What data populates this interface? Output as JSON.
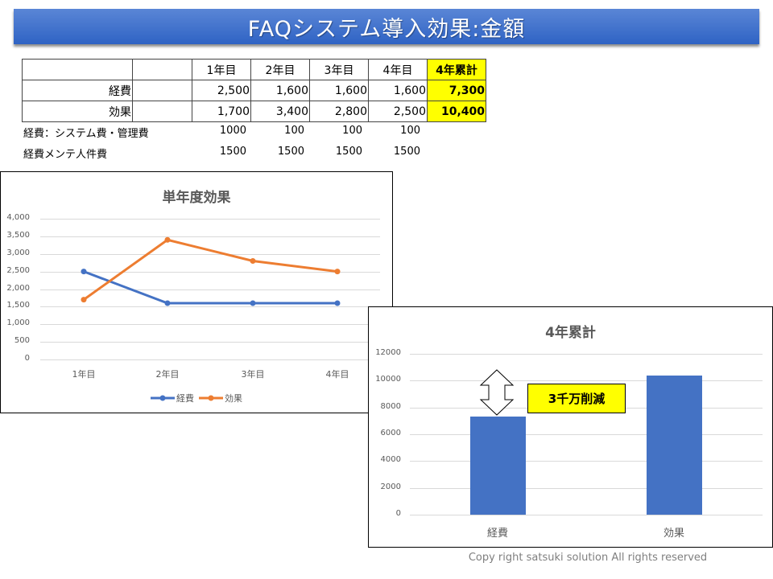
{
  "title": "FAQシステム導入効果:金額",
  "table": {
    "headers": [
      "",
      "",
      "1年目",
      "2年目",
      "3年目",
      "4年目",
      "4年累計"
    ],
    "rows": [
      {
        "label": "経費",
        "values": [
          "2,500",
          "1,600",
          "1,600",
          "1,600"
        ],
        "total": "7,300"
      },
      {
        "label": "効果",
        "values": [
          "1,700",
          "3,400",
          "2,800",
          "2,500"
        ],
        "total": "10,400"
      }
    ],
    "notes": [
      {
        "label": "経費：システム費・管理費",
        "values": [
          "1000",
          "100",
          "100",
          "100"
        ]
      },
      {
        "label": "経費メンテ人件費",
        "values": [
          "1500",
          "1500",
          "1500",
          "1500"
        ]
      }
    ]
  },
  "colors": {
    "series_cost": "#4472c4",
    "series_effect": "#ed7d31",
    "highlight": "#ffff00",
    "banner": "#3d6fcb"
  },
  "callout": "3千万削減",
  "copyright": "Copy right satsuki solution All rights reserved",
  "chart_data": [
    {
      "type": "line",
      "title": "単年度効果",
      "categories": [
        "1年目",
        "2年目",
        "3年目",
        "4年目"
      ],
      "series": [
        {
          "name": "経費",
          "values": [
            2500,
            1600,
            1600,
            1600
          ],
          "color": "#4472c4"
        },
        {
          "name": "効果",
          "values": [
            1700,
            3400,
            2800,
            2500
          ],
          "color": "#ed7d31"
        }
      ],
      "yticks": [
        "4,000",
        "3,500",
        "3,000",
        "2,500",
        "2,000",
        "1,500",
        "1,000",
        "500",
        "0"
      ],
      "ylim": [
        0,
        4000
      ],
      "xlabel": "",
      "ylabel": "",
      "grid": true,
      "legend_position": "bottom"
    },
    {
      "type": "bar",
      "title": "4年累計",
      "categories": [
        "経費",
        "効果"
      ],
      "values": [
        7300,
        10400
      ],
      "yticks": [
        "12000",
        "10000",
        "8000",
        "6000",
        "4000",
        "2000",
        "0"
      ],
      "ylim": [
        0,
        12000
      ],
      "xlabel": "",
      "ylabel": "",
      "grid": true,
      "annotations": [
        "3千万削減"
      ]
    }
  ]
}
